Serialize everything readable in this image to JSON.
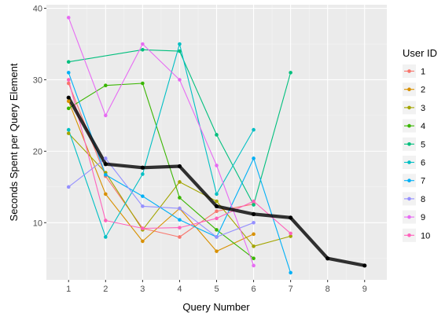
{
  "chart_data": {
    "type": "line",
    "xlabel": "Query Number",
    "ylabel": "Seconds Spent per Query Element",
    "x_ticks": [
      1,
      2,
      3,
      4,
      5,
      6,
      7,
      8,
      9
    ],
    "y_ticks": [
      10,
      20,
      30,
      40
    ],
    "xlim": [
      0.4,
      9.6
    ],
    "ylim": [
      2,
      40.5
    ],
    "grid": true,
    "legend": {
      "title": "User ID",
      "placement": "right"
    },
    "series": [
      {
        "name": "1",
        "color": "#F8766D",
        "x": [
          1,
          2,
          3,
          4,
          5,
          6
        ],
        "y": [
          29.5,
          16.5,
          9.2,
          8.0,
          11.6,
          12.6
        ]
      },
      {
        "name": "2",
        "color": "#D89000",
        "x": [
          1,
          2,
          3,
          4,
          5,
          6
        ],
        "y": [
          27.0,
          14.0,
          7.4,
          12.0,
          6.0,
          8.4
        ]
      },
      {
        "name": "3",
        "color": "#A3A500",
        "x": [
          1,
          2,
          3,
          4,
          5,
          6,
          7
        ],
        "y": [
          22.5,
          17.0,
          9.0,
          15.7,
          13.0,
          6.7,
          8.1
        ]
      },
      {
        "name": "4",
        "color": "#39B600",
        "x": [
          1,
          2,
          3,
          4,
          5,
          6
        ],
        "y": [
          26.0,
          29.2,
          29.5,
          13.5,
          9.0,
          5.0
        ]
      },
      {
        "name": "5",
        "color": "#00BF7D",
        "x": [
          1,
          3,
          4,
          5,
          6,
          7
        ],
        "y": [
          32.5,
          34.2,
          34.0,
          22.3,
          12.5,
          31.0
        ]
      },
      {
        "name": "6",
        "color": "#00BFC4",
        "x": [
          1,
          2,
          3,
          4,
          5,
          6
        ],
        "y": [
          23.0,
          8.0,
          16.8,
          35.0,
          14.0,
          23.0
        ]
      },
      {
        "name": "7",
        "color": "#00B0F6",
        "x": [
          1,
          2,
          3,
          4,
          5,
          6,
          7
        ],
        "y": [
          31.0,
          16.7,
          13.7,
          10.4,
          8.0,
          19.0,
          3.0
        ]
      },
      {
        "name": "8",
        "color": "#9590FF",
        "x": [
          1,
          2,
          3,
          4,
          5,
          6
        ],
        "y": [
          15.0,
          19.0,
          12.3,
          12.0,
          8.0,
          10.0
        ]
      },
      {
        "name": "9",
        "color": "#E76BF3",
        "x": [
          1,
          2,
          3,
          4,
          5,
          6
        ],
        "y": [
          38.7,
          25.0,
          35.0,
          30.0,
          18.0,
          4.0
        ]
      },
      {
        "name": "10",
        "color": "#FF62BC",
        "x": [
          1,
          2,
          3,
          4,
          5,
          6,
          7
        ],
        "y": [
          30.0,
          10.3,
          9.2,
          9.3,
          10.6,
          13.0,
          8.5
        ]
      }
    ],
    "mean_line": {
      "color": "#000000",
      "x": [
        1,
        2,
        3,
        4,
        5,
        6,
        7,
        8,
        9
      ],
      "y": [
        27.5,
        18.2,
        17.7,
        17.9,
        12.3,
        11.2,
        10.7,
        5.0,
        4.0
      ]
    }
  }
}
